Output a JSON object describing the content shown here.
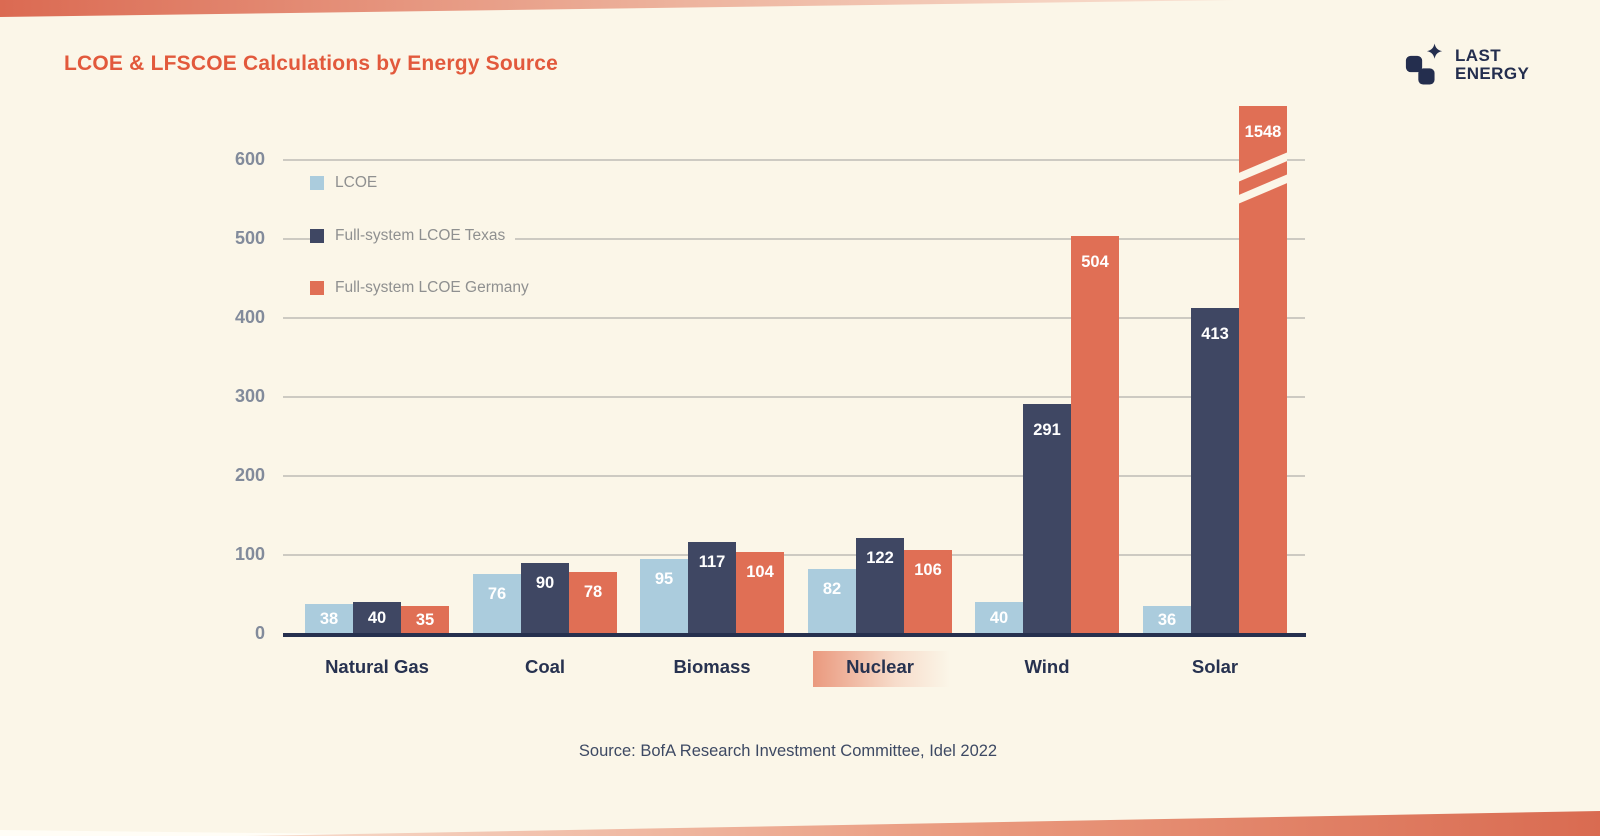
{
  "header": {
    "title": "LCOE & LFSCOE Calculations by Energy Source"
  },
  "logo": {
    "line1": "LAST",
    "line2": "ENERGY"
  },
  "colors": {
    "background": "#fbf6e8",
    "title": "#e2593c",
    "light_blue": "#abccdd",
    "navy": "#3f4763",
    "orange": "#e06f55",
    "gridline": "#cdcac2",
    "axis": "#26304e",
    "ytick_label": "#828b9b",
    "category_label": "#273250",
    "legend_text": "#8f9090",
    "value_label": "#ffffff",
    "ribbon_orange": "#db6a52"
  },
  "chart_data": {
    "type": "bar",
    "title": "LCOE & LFSCOE Calculations by Energy Source",
    "categories": [
      "Natural Gas",
      "Coal",
      "Biomass",
      "Nuclear",
      "Wind",
      "Solar"
    ],
    "series": [
      {
        "name": "LCOE",
        "color": "#abccdd",
        "values": [
          38,
          76,
          95,
          82,
          40,
          36
        ]
      },
      {
        "name": "Full-system LCOE Texas",
        "color": "#3f4763",
        "values": [
          40,
          90,
          117,
          122,
          291,
          413
        ]
      },
      {
        "name": "Full-system LCOE Germany",
        "color": "#e06f55",
        "values": [
          35,
          78,
          104,
          106,
          504,
          1548
        ]
      }
    ],
    "ylim": [
      0,
      600
    ],
    "yticks": [
      0,
      100,
      200,
      300,
      400,
      500,
      600
    ],
    "grid": "horizontal",
    "legend_position": "top-left-inside",
    "broken_bar": {
      "category": "Solar",
      "series": "Full-system LCOE Germany",
      "value": 1548,
      "note": "bar clipped above axis maximum with break marks"
    },
    "highlighted_category": "Nuclear"
  },
  "footer": {
    "source": "Source: BofA Research Investment Committee, Idel 2022"
  }
}
